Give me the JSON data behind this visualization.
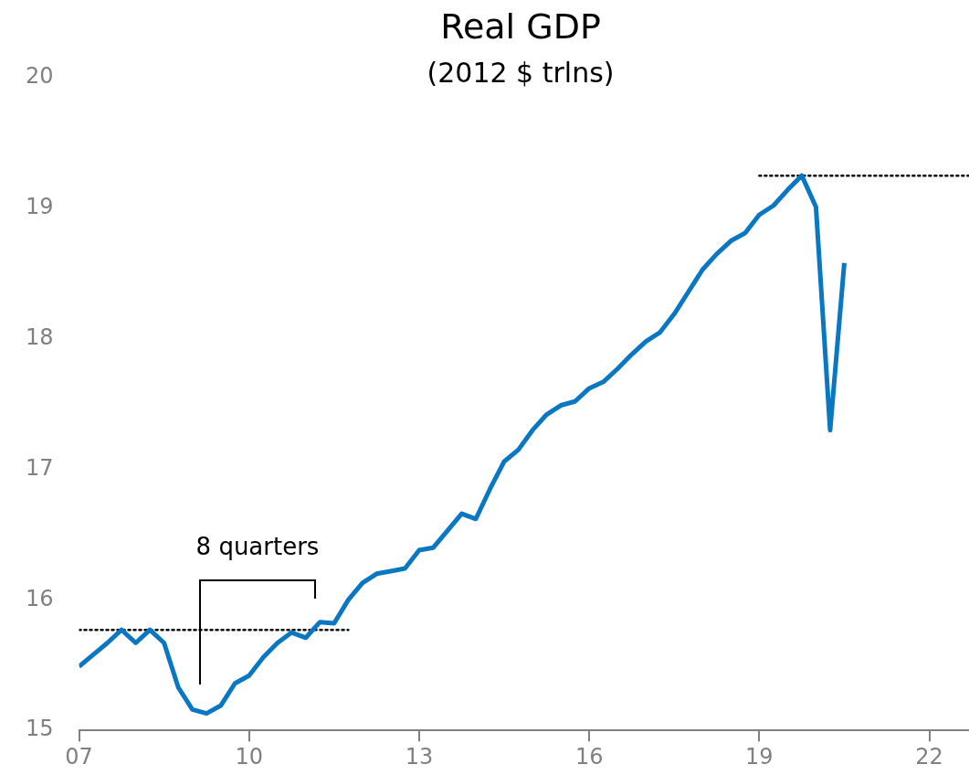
{
  "chart_data": {
    "type": "line",
    "title": "Real GDP",
    "subtitle": "(2012 $ trlns)",
    "xlim": [
      2007,
      2022.7
    ],
    "ylim": [
      15,
      20
    ],
    "xticks": [
      {
        "value": 2007,
        "label": "07"
      },
      {
        "value": 2010,
        "label": "10"
      },
      {
        "value": 2013,
        "label": "13"
      },
      {
        "value": 2016,
        "label": "16"
      },
      {
        "value": 2019,
        "label": "19"
      },
      {
        "value": 2022,
        "label": "22"
      }
    ],
    "yticks": [
      15,
      16,
      17,
      18,
      19,
      20
    ],
    "grid": false,
    "legend": false,
    "marker": "none",
    "series": [
      {
        "color": "#0a77c2",
        "line_style": "solid",
        "x": [
          2007,
          2007.25,
          2007.5,
          2007.75,
          2008,
          2008.25,
          2008.5,
          2008.75,
          2009,
          2009.25,
          2009.5,
          2009.75,
          2010,
          2010.25,
          2010.5,
          2010.75,
          2011,
          2011.25,
          2011.5,
          2011.75,
          2012,
          2012.25,
          2012.5,
          2012.75,
          2013,
          2013.25,
          2013.5,
          2013.75,
          2014,
          2014.25,
          2014.5,
          2014.75,
          2015,
          2015.25,
          2015.5,
          2015.75,
          2016,
          2016.25,
          2016.5,
          2016.75,
          2017,
          2017.25,
          2017.5,
          2017.75,
          2018,
          2018.25,
          2018.5,
          2018.75,
          2019,
          2019.25,
          2019.5,
          2019.75,
          2020,
          2020.25,
          2020.5
        ],
        "values": [
          15.49,
          15.58,
          15.67,
          15.77,
          15.67,
          15.77,
          15.67,
          15.33,
          15.16,
          15.13,
          15.19,
          15.36,
          15.42,
          15.56,
          15.67,
          15.75,
          15.71,
          15.83,
          15.82,
          16.0,
          16.13,
          16.2,
          16.22,
          16.24,
          16.38,
          16.4,
          16.53,
          16.66,
          16.62,
          16.85,
          17.06,
          17.15,
          17.3,
          17.42,
          17.49,
          17.52,
          17.62,
          17.67,
          17.77,
          17.88,
          17.98,
          18.05,
          18.19,
          18.36,
          18.53,
          18.65,
          18.75,
          18.81,
          18.95,
          19.02,
          19.14,
          19.25,
          19.01,
          17.3,
          18.58
        ]
      },
      {
        "type": "line",
        "color": "#000000",
        "line_style": "dotted",
        "x": [
          2007,
          2011.75
        ],
        "values": [
          15.77,
          15.77
        ]
      },
      {
        "type": "line",
        "color": "#000000",
        "line_style": "dotted",
        "x": [
          2019,
          2022.7
        ],
        "values": [
          19.25,
          19.25
        ]
      }
    ],
    "annotations": [
      "8 quarters"
    ]
  }
}
